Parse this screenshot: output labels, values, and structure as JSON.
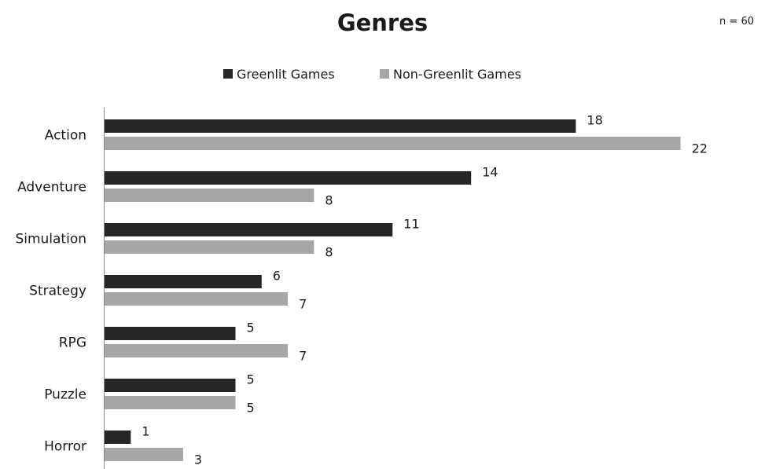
{
  "chart_data": {
    "type": "bar",
    "orientation": "horizontal",
    "title": "Genres",
    "annotation": "n = 60",
    "xlabel": "",
    "ylabel": "",
    "categories": [
      "Action",
      "Adventure",
      "Simulation",
      "Strategy",
      "RPG",
      "Puzzle",
      "Horror"
    ],
    "series": [
      {
        "name": "Greenlit Games",
        "color": "#262626",
        "values": [
          18,
          14,
          11,
          6,
          5,
          5,
          1
        ]
      },
      {
        "name": "Non-Greenlit Games",
        "color": "#a6a6a6",
        "values": [
          22,
          8,
          8,
          7,
          7,
          5,
          3
        ]
      }
    ],
    "xlim": [
      0,
      22
    ],
    "grid": false,
    "legend_position": "top",
    "data_labels": true
  }
}
